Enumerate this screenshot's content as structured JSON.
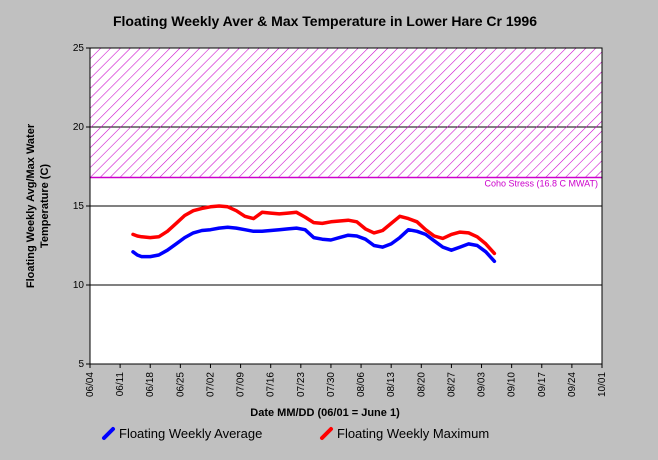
{
  "chart_data": {
    "type": "line",
    "title": "Floating Weekly Aver & Max Temperature in Lower Hare Cr 1996",
    "xlabel": "Date MM/DD (06/01 = June 1)",
    "ylabel_lines": [
      "Floating Weekly Avg/Max Water",
      "Temperature (C)"
    ],
    "x_tick_labels": [
      "06/04",
      "06/11",
      "06/18",
      "06/25",
      "07/02",
      "07/09",
      "07/16",
      "07/23",
      "07/30",
      "08/06",
      "08/13",
      "08/20",
      "08/27",
      "09/03",
      "09/10",
      "09/17",
      "09/24",
      "10/01"
    ],
    "xlim_days_since_jun1": [
      3,
      122
    ],
    "ylim": [
      5,
      25
    ],
    "yticks": [
      5,
      10,
      15,
      20,
      25
    ],
    "grid": "horizontal",
    "legend_position": "bottom",
    "threshold": {
      "label": "Coho Stress (16.8 C MWAT)",
      "value": 16.8,
      "upper": 25,
      "color": "#cc00cc"
    },
    "series": [
      {
        "name": "Floating Weekly Average",
        "color": "#0000ff",
        "points": [
          [
            13,
            12.1
          ],
          [
            14,
            11.9
          ],
          [
            15,
            11.8
          ],
          [
            17,
            11.8
          ],
          [
            19,
            11.9
          ],
          [
            21,
            12.2
          ],
          [
            23,
            12.6
          ],
          [
            25,
            13.0
          ],
          [
            27,
            13.3
          ],
          [
            29,
            13.45
          ],
          [
            31,
            13.5
          ],
          [
            33,
            13.6
          ],
          [
            35,
            13.65
          ],
          [
            37,
            13.6
          ],
          [
            39,
            13.5
          ],
          [
            41,
            13.4
          ],
          [
            43,
            13.4
          ],
          [
            45,
            13.45
          ],
          [
            47,
            13.5
          ],
          [
            49,
            13.55
          ],
          [
            51,
            13.6
          ],
          [
            53,
            13.5
          ],
          [
            55,
            13.0
          ],
          [
            57,
            12.9
          ],
          [
            59,
            12.85
          ],
          [
            61,
            13.0
          ],
          [
            63,
            13.15
          ],
          [
            65,
            13.1
          ],
          [
            67,
            12.9
          ],
          [
            69,
            12.5
          ],
          [
            71,
            12.4
          ],
          [
            73,
            12.6
          ],
          [
            75,
            13.0
          ],
          [
            77,
            13.5
          ],
          [
            79,
            13.4
          ],
          [
            81,
            13.2
          ],
          [
            83,
            12.8
          ],
          [
            85,
            12.4
          ],
          [
            87,
            12.2
          ],
          [
            89,
            12.4
          ],
          [
            91,
            12.6
          ],
          [
            93,
            12.5
          ],
          [
            95,
            12.1
          ],
          [
            97,
            11.5
          ]
        ]
      },
      {
        "name": "Floating Weekly Maximum",
        "color": "#ff0000",
        "points": [
          [
            13,
            13.2
          ],
          [
            14,
            13.1
          ],
          [
            15,
            13.05
          ],
          [
            17,
            13.0
          ],
          [
            19,
            13.05
          ],
          [
            21,
            13.4
          ],
          [
            23,
            13.9
          ],
          [
            25,
            14.4
          ],
          [
            27,
            14.7
          ],
          [
            29,
            14.85
          ],
          [
            31,
            14.95
          ],
          [
            33,
            15.0
          ],
          [
            35,
            14.95
          ],
          [
            37,
            14.7
          ],
          [
            39,
            14.35
          ],
          [
            41,
            14.2
          ],
          [
            43,
            14.6
          ],
          [
            45,
            14.55
          ],
          [
            47,
            14.5
          ],
          [
            49,
            14.55
          ],
          [
            51,
            14.6
          ],
          [
            53,
            14.3
          ],
          [
            55,
            13.95
          ],
          [
            57,
            13.9
          ],
          [
            59,
            14.0
          ],
          [
            61,
            14.05
          ],
          [
            63,
            14.1
          ],
          [
            65,
            14.0
          ],
          [
            67,
            13.55
          ],
          [
            69,
            13.3
          ],
          [
            71,
            13.45
          ],
          [
            73,
            13.9
          ],
          [
            75,
            14.35
          ],
          [
            77,
            14.2
          ],
          [
            79,
            14.0
          ],
          [
            81,
            13.5
          ],
          [
            83,
            13.1
          ],
          [
            85,
            12.95
          ],
          [
            87,
            13.2
          ],
          [
            89,
            13.35
          ],
          [
            91,
            13.3
          ],
          [
            93,
            13.05
          ],
          [
            95,
            12.6
          ],
          [
            97,
            12.0
          ]
        ]
      }
    ]
  }
}
